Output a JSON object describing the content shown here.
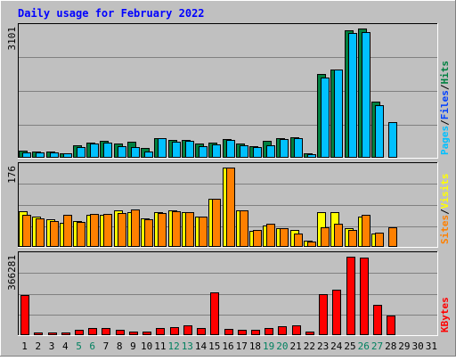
{
  "chart_data": {
    "type": "bar",
    "title": "Daily usage for February 2022",
    "days": [
      "1",
      "2",
      "3",
      "4",
      "5",
      "6",
      "7",
      "8",
      "9",
      "10",
      "11",
      "12",
      "13",
      "14",
      "15",
      "16",
      "17",
      "18",
      "19",
      "20",
      "21",
      "22",
      "23",
      "24",
      "25",
      "26",
      "27",
      "28",
      "29",
      "30",
      "31"
    ],
    "weekend_days": [
      5,
      6,
      12,
      13,
      19,
      20,
      26,
      27
    ],
    "panels": [
      {
        "id": "hits-files-pages",
        "ymax": 3101,
        "ymax_label": "3101",
        "legend": [
          {
            "label": "Hits",
            "color": "#008040"
          },
          {
            "label": "Files",
            "color": "#0040ff"
          },
          {
            "label": "Pages",
            "color": "#00c0ff"
          }
        ],
        "series": [
          {
            "name": "Hits",
            "color": "#008040",
            "values": [
              160,
              120,
              130,
              90,
              270,
              350,
              380,
              320,
              370,
              210,
              460,
              410,
              410,
              320,
              340,
              430,
              330,
              260,
              390,
              460,
              480,
              90,
              2000,
              2120,
              3060,
              3101,
              1340,
              0,
              0,
              0,
              0
            ]
          },
          {
            "name": "Files",
            "color": "#00c0ff",
            "values": [
              110,
              110,
              100,
              80,
              230,
              330,
              350,
              260,
              240,
              130,
              450,
              370,
              380,
              250,
              310,
              400,
              270,
              230,
              270,
              430,
              450,
              70,
              1920,
              2120,
              3000,
              3020,
              1250,
              840,
              0,
              0,
              0
            ]
          }
        ]
      },
      {
        "id": "visits-sites",
        "ymax": 176,
        "ymax_label": "176",
        "legend": [
          {
            "label": "Visits",
            "color": "#ffff00"
          },
          {
            "label": "Sites",
            "color": "#ff8000"
          }
        ],
        "series": [
          {
            "name": "Visits",
            "color": "#ffff00",
            "values": [
              78,
              66,
              60,
              52,
              56,
              70,
              70,
              80,
              76,
              62,
              76,
              80,
              76,
              66,
              106,
              176,
              80,
              34,
              46,
              40,
              36,
              12,
              76,
              76,
              40,
              66,
              28,
              0,
              0,
              0,
              0
            ]
          },
          {
            "name": "Sites",
            "color": "#ff8000",
            "values": [
              70,
              62,
              56,
              70,
              54,
              72,
              72,
              74,
              82,
              60,
              74,
              78,
              76,
              66,
              106,
              176,
              80,
              36,
              50,
              40,
              28,
              10,
              42,
              50,
              36,
              70,
              30,
              42,
              0,
              0,
              0
            ]
          }
        ]
      },
      {
        "id": "kbytes",
        "ymax": 366281,
        "ymax_label": "366281",
        "legend": [
          {
            "label": "KBytes",
            "color": "#ff0000"
          }
        ],
        "series": [
          {
            "name": "KBytes",
            "color": "#ff0000",
            "values": [
              186000,
              9000,
              7000,
              6000,
              22000,
              30000,
              28000,
              22000,
              14000,
              12000,
              30000,
              32000,
              40000,
              28000,
              196000,
              24000,
              22000,
              20000,
              28000,
              38000,
              44000,
              12000,
              188000,
              212000,
              366281,
              362000,
              138000,
              88000,
              0,
              0,
              0
            ]
          }
        ]
      }
    ]
  }
}
